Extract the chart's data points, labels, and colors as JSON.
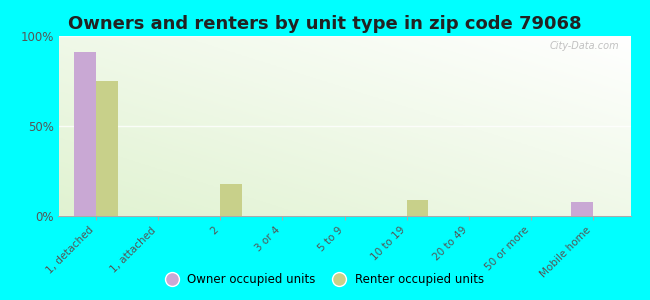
{
  "title": "Owners and renters by unit type in zip code 79068",
  "categories": [
    "1, detached",
    "1, attached",
    "2",
    "3 or 4",
    "5 to 9",
    "10 to 19",
    "20 to 49",
    "50 or more",
    "Mobile home"
  ],
  "owner_values": [
    91,
    0,
    0,
    0,
    0,
    0,
    0,
    0,
    8
  ],
  "renter_values": [
    75,
    0,
    18,
    0,
    0,
    9,
    0,
    0,
    0
  ],
  "owner_color": "#c9a8d4",
  "renter_color": "#c8d08a",
  "background_color": "#00ffff",
  "bar_width": 0.35,
  "ylim": [
    0,
    100
  ],
  "yticks": [
    0,
    50,
    100
  ],
  "ytick_labels": [
    "0%",
    "50%",
    "100%"
  ],
  "title_fontsize": 13,
  "legend_labels": [
    "Owner occupied units",
    "Renter occupied units"
  ],
  "watermark": "City-Data.com"
}
